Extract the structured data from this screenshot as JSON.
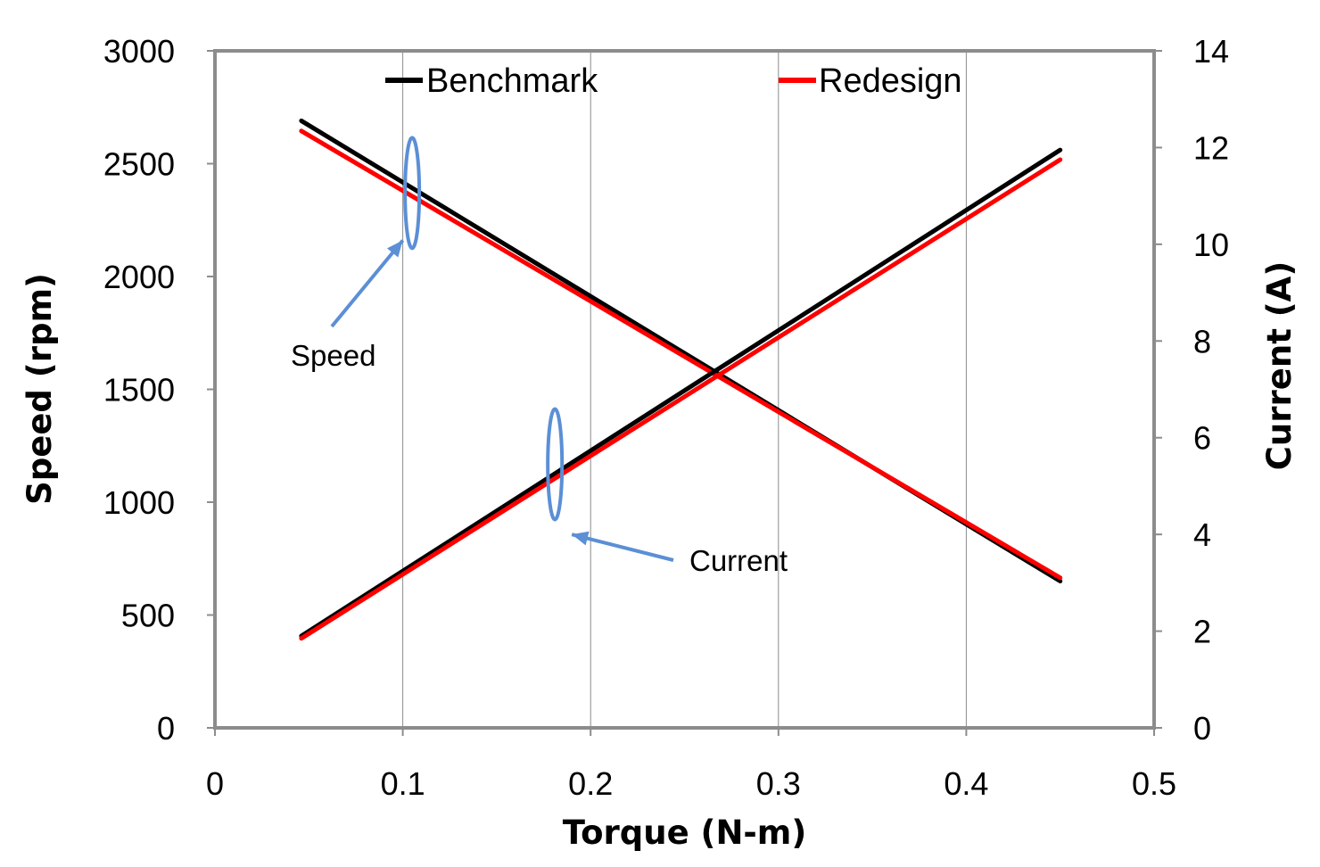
{
  "chart_data": {
    "type": "line",
    "title": "",
    "xlabel": "Torque (N-m)",
    "ylabel": "Speed (rpm)",
    "y2label": "Current (A)",
    "xlim": [
      0,
      0.5
    ],
    "ylim": [
      0,
      3000
    ],
    "y2lim": [
      0,
      14
    ],
    "x_ticks": [
      "0",
      "0.1",
      "0.2",
      "0.3",
      "0.4",
      "0.5"
    ],
    "y_ticks": [
      "0",
      "500",
      "1000",
      "1500",
      "2000",
      "2500",
      "3000"
    ],
    "y2_ticks": [
      "0",
      "2",
      "4",
      "6",
      "8",
      "10",
      "12",
      "14"
    ],
    "grid": "vertical",
    "legend": "top",
    "series": [
      {
        "name": "Benchmark",
        "axis": "left",
        "group": "Speed",
        "color": "#000000",
        "x": [
          0.046,
          0.45
        ],
        "y": [
          2690,
          650
        ]
      },
      {
        "name": "Redesign",
        "axis": "left",
        "group": "Speed",
        "color": "#ff0000",
        "x": [
          0.046,
          0.45
        ],
        "y": [
          2645,
          665
        ]
      },
      {
        "name": "Benchmark",
        "axis": "right",
        "group": "Current",
        "color": "#000000",
        "x": [
          0.046,
          0.45
        ],
        "y": [
          1.9,
          11.95
        ]
      },
      {
        "name": "Redesign",
        "axis": "right",
        "group": "Current",
        "color": "#ff0000",
        "x": [
          0.046,
          0.45
        ],
        "y": [
          1.85,
          11.75
        ]
      }
    ],
    "legend_entries": [
      {
        "name": "Benchmark",
        "color": "#000000"
      },
      {
        "name": "Redesign",
        "color": "#ff0000"
      }
    ],
    "annotations": [
      {
        "text": "Speed",
        "axis": "left",
        "ellipse_at": [
          0.105,
          2370
        ],
        "arrow_to": [
          0.1,
          2160
        ]
      },
      {
        "text": "Current",
        "axis": "right",
        "ellipse_at": [
          0.181,
          5.45
        ],
        "arrow_to": [
          0.19,
          4.0
        ]
      }
    ],
    "annotation_color": "#5b8fd6"
  }
}
